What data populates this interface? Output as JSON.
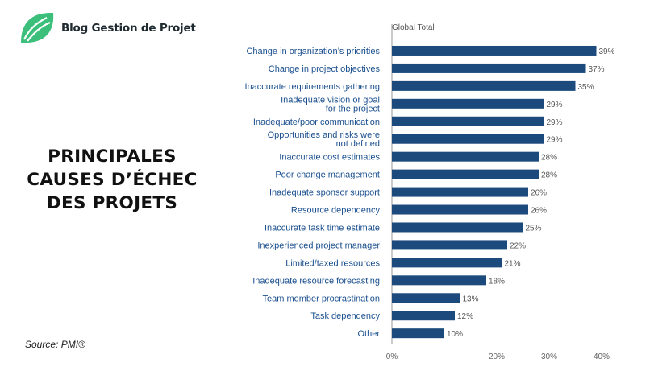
{
  "brand": {
    "name": "Blog Gestion de Projet",
    "logo_color": "#3bbf7a"
  },
  "headline": {
    "lines": [
      "PRINCIPALES",
      "CAUSES D’ÉCHEC",
      "DES PROJETS"
    ]
  },
  "source": "Source: PMI®",
  "chart_data": {
    "type": "bar",
    "orientation": "horizontal",
    "series_name": "Global Total",
    "categories": [
      [
        "Change in organization’s priorities"
      ],
      [
        "Change in project objectives"
      ],
      [
        "Inaccurate requirements gathering"
      ],
      [
        "Inadequate vision or goal",
        "for the project"
      ],
      [
        "Inadequate/poor communication"
      ],
      [
        "Opportunities and risks were",
        "not defined"
      ],
      [
        "Inaccurate cost estimates"
      ],
      [
        "Poor change management"
      ],
      [
        "Inadequate sponsor support"
      ],
      [
        "Resource dependency"
      ],
      [
        "Inaccurate task time estimate"
      ],
      [
        "Inexperienced project manager"
      ],
      [
        "Limited/taxed resources"
      ],
      [
        "Inadequate resource forecasting"
      ],
      [
        "Team member procrastination"
      ],
      [
        "Task dependency"
      ],
      [
        "Other"
      ]
    ],
    "values": [
      39,
      37,
      35,
      29,
      29,
      29,
      28,
      28,
      26,
      26,
      25,
      22,
      21,
      18,
      13,
      12,
      10
    ],
    "value_suffix": "%",
    "xlim": [
      0,
      40
    ],
    "xticks": [
      0,
      20,
      30,
      40
    ],
    "xtick_labels": [
      "0%",
      "20%",
      "30%",
      "40%"
    ],
    "grid": false,
    "bar_color": "#1d4a7c"
  }
}
